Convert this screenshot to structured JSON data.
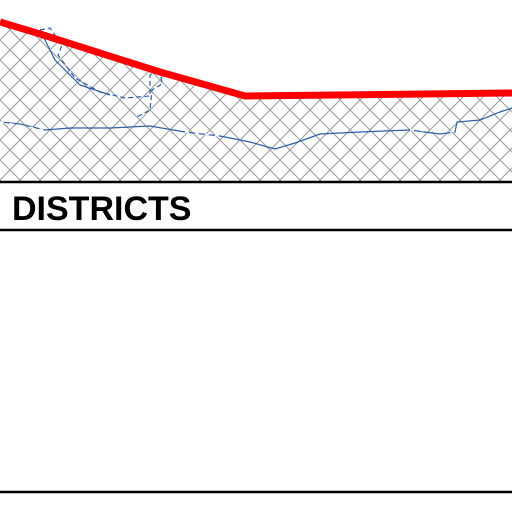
{
  "legend": {
    "title": "DISTRICTS"
  }
}
